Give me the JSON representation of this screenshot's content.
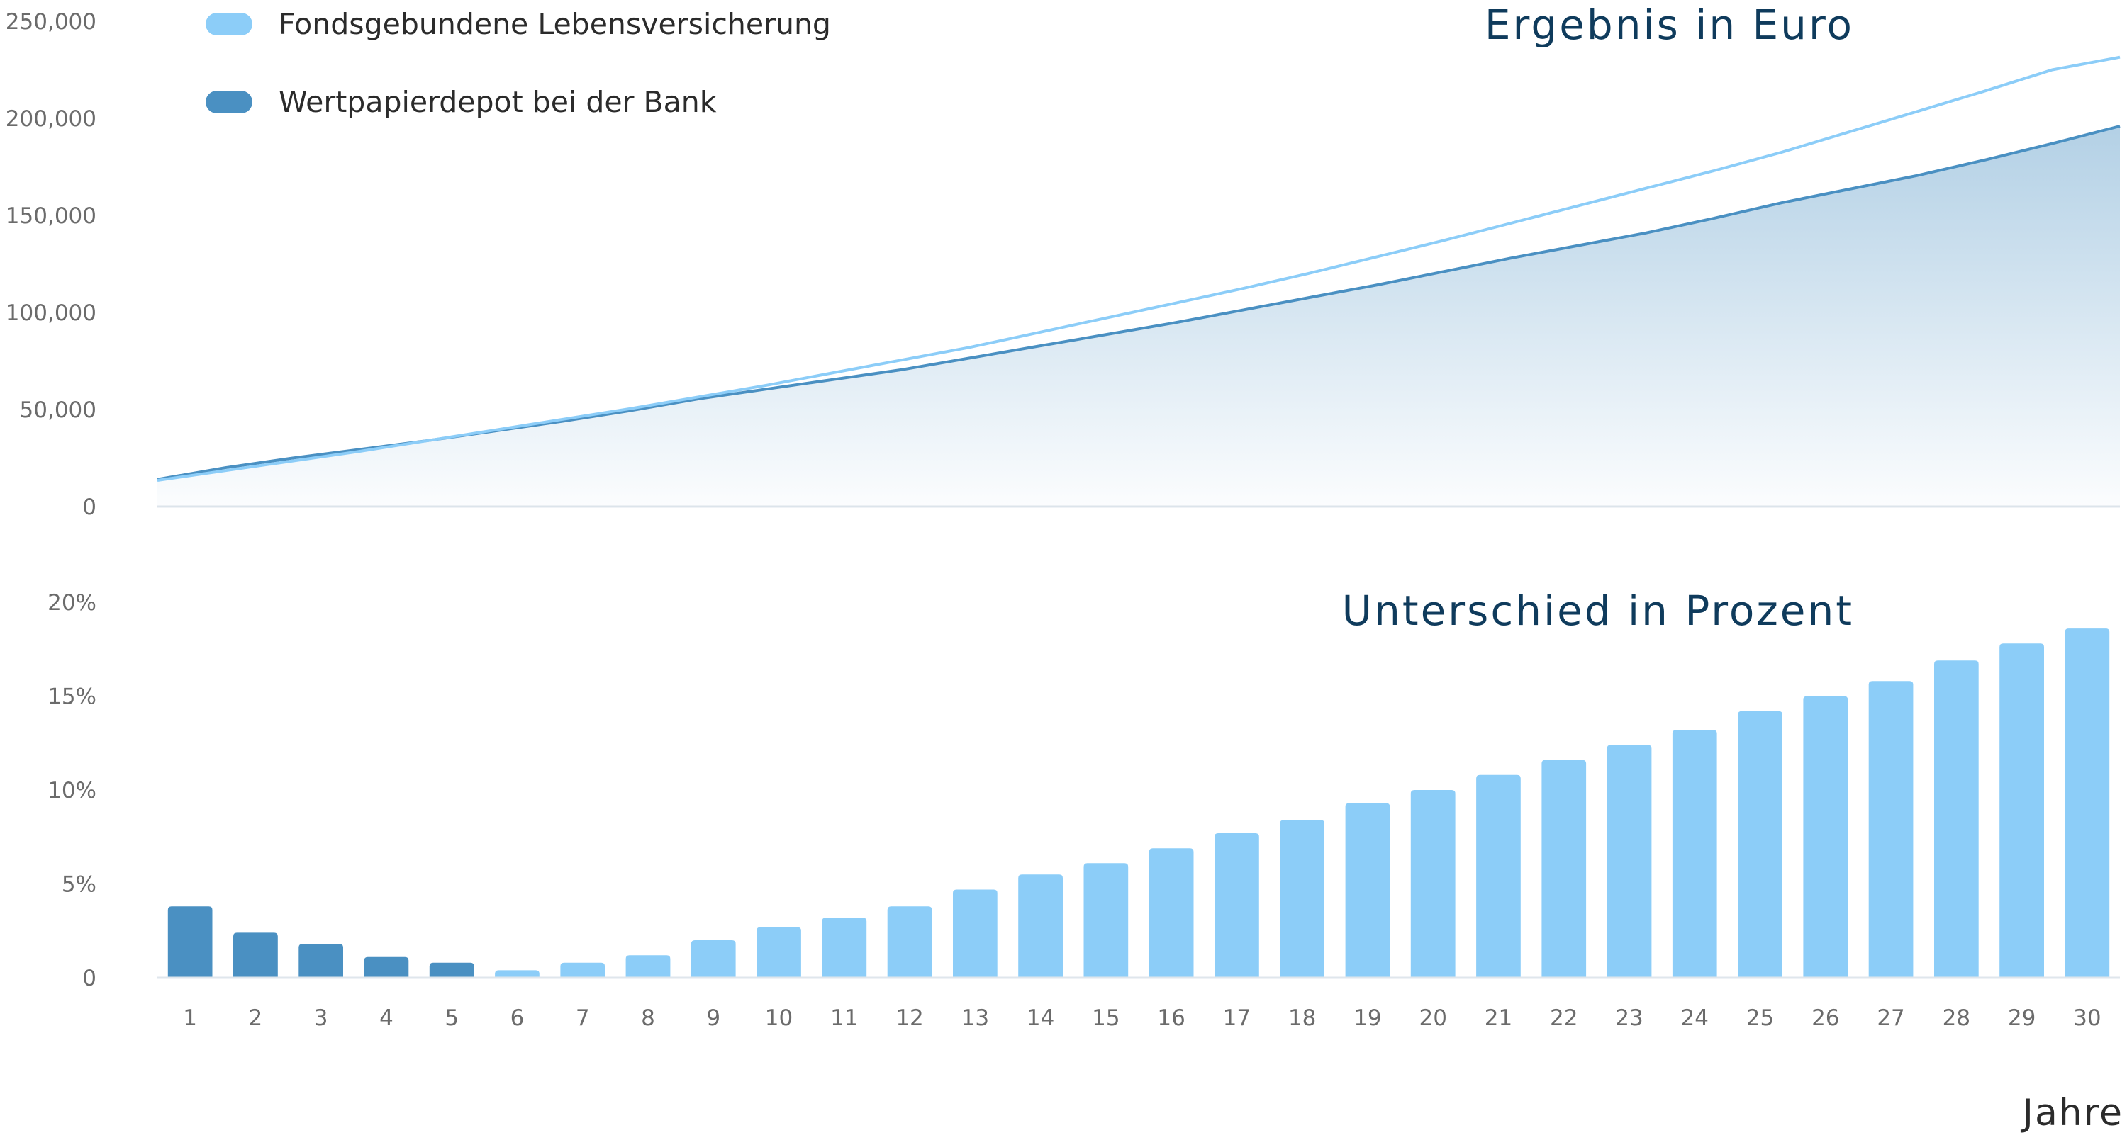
{
  "colors": {
    "light": "#8ccdf8",
    "dark": "#4a90c2",
    "title": "#0f3b5c",
    "tick": "#6b6b6b",
    "baseline": "#dfe6ec"
  },
  "chart_data": [
    {
      "type": "line",
      "title": "Ergebnis in Euro",
      "x": [
        1,
        2,
        3,
        4,
        5,
        6,
        7,
        8,
        9,
        10,
        11,
        12,
        13,
        14,
        15,
        16,
        17,
        18,
        19,
        20,
        21,
        22,
        23,
        24,
        25,
        26,
        27,
        28,
        29,
        30
      ],
      "ylim": [
        0,
        250000
      ],
      "yticks": [
        0,
        50000,
        100000,
        150000,
        200000,
        250000
      ],
      "ytick_labels": [
        "0",
        "50,000",
        "100,000",
        "150,000",
        "200,000",
        "250,000"
      ],
      "legend_position": "top-left",
      "series": [
        {
          "name": "Fondsgebundene Lebensversicherung",
          "color": "#8ccdf8",
          "values": [
            13500,
            18500,
            23500,
            28500,
            34000,
            39500,
            45000,
            50500,
            56500,
            62500,
            69000,
            75500,
            82000,
            89500,
            97000,
            104500,
            112000,
            120000,
            128500,
            137000,
            146000,
            155000,
            164000,
            173000,
            182500,
            193000,
            203500,
            214000,
            225000,
            231500
          ]
        },
        {
          "name": "Wertpapierdepot bei der Bank",
          "color": "#4a90c2",
          "area": true,
          "values": [
            14000,
            20000,
            25000,
            29500,
            34000,
            39000,
            44000,
            49500,
            55500,
            60500,
            65500,
            70500,
            76500,
            82500,
            88500,
            94500,
            101000,
            107500,
            114000,
            121000,
            128000,
            134500,
            141000,
            148500,
            156500,
            163500,
            170500,
            178500,
            187000,
            196000
          ]
        }
      ]
    },
    {
      "type": "bar",
      "title": "Unterschied in Prozent",
      "xlabel": "Jahre",
      "categories": [
        "1",
        "2",
        "3",
        "4",
        "5",
        "6",
        "7",
        "8",
        "9",
        "10",
        "11",
        "12",
        "13",
        "14",
        "15",
        "16",
        "17",
        "18",
        "19",
        "20",
        "21",
        "22",
        "23",
        "24",
        "25",
        "26",
        "27",
        "28",
        "29",
        "30"
      ],
      "values": [
        3.8,
        2.4,
        1.8,
        1.1,
        0.8,
        0.4,
        0.8,
        1.2,
        2.0,
        2.7,
        3.2,
        3.8,
        4.7,
        5.5,
        6.1,
        6.9,
        7.7,
        8.4,
        9.3,
        10.0,
        10.8,
        11.6,
        12.4,
        13.2,
        14.2,
        15.0,
        15.8,
        16.9,
        17.8,
        18.6
      ],
      "bar_colors": [
        "#4a90c2",
        "#4a90c2",
        "#4a90c2",
        "#4a90c2",
        "#4a90c2",
        "#8ccdf8",
        "#8ccdf8",
        "#8ccdf8",
        "#8ccdf8",
        "#8ccdf8",
        "#8ccdf8",
        "#8ccdf8",
        "#8ccdf8",
        "#8ccdf8",
        "#8ccdf8",
        "#8ccdf8",
        "#8ccdf8",
        "#8ccdf8",
        "#8ccdf8",
        "#8ccdf8",
        "#8ccdf8",
        "#8ccdf8",
        "#8ccdf8",
        "#8ccdf8",
        "#8ccdf8",
        "#8ccdf8",
        "#8ccdf8",
        "#8ccdf8",
        "#8ccdf8",
        "#8ccdf8"
      ],
      "ylim": [
        0,
        20
      ],
      "yticks": [
        0,
        5,
        10,
        15,
        20
      ],
      "ytick_labels": [
        "0",
        "5%",
        "10%",
        "15%",
        "20%"
      ]
    }
  ]
}
